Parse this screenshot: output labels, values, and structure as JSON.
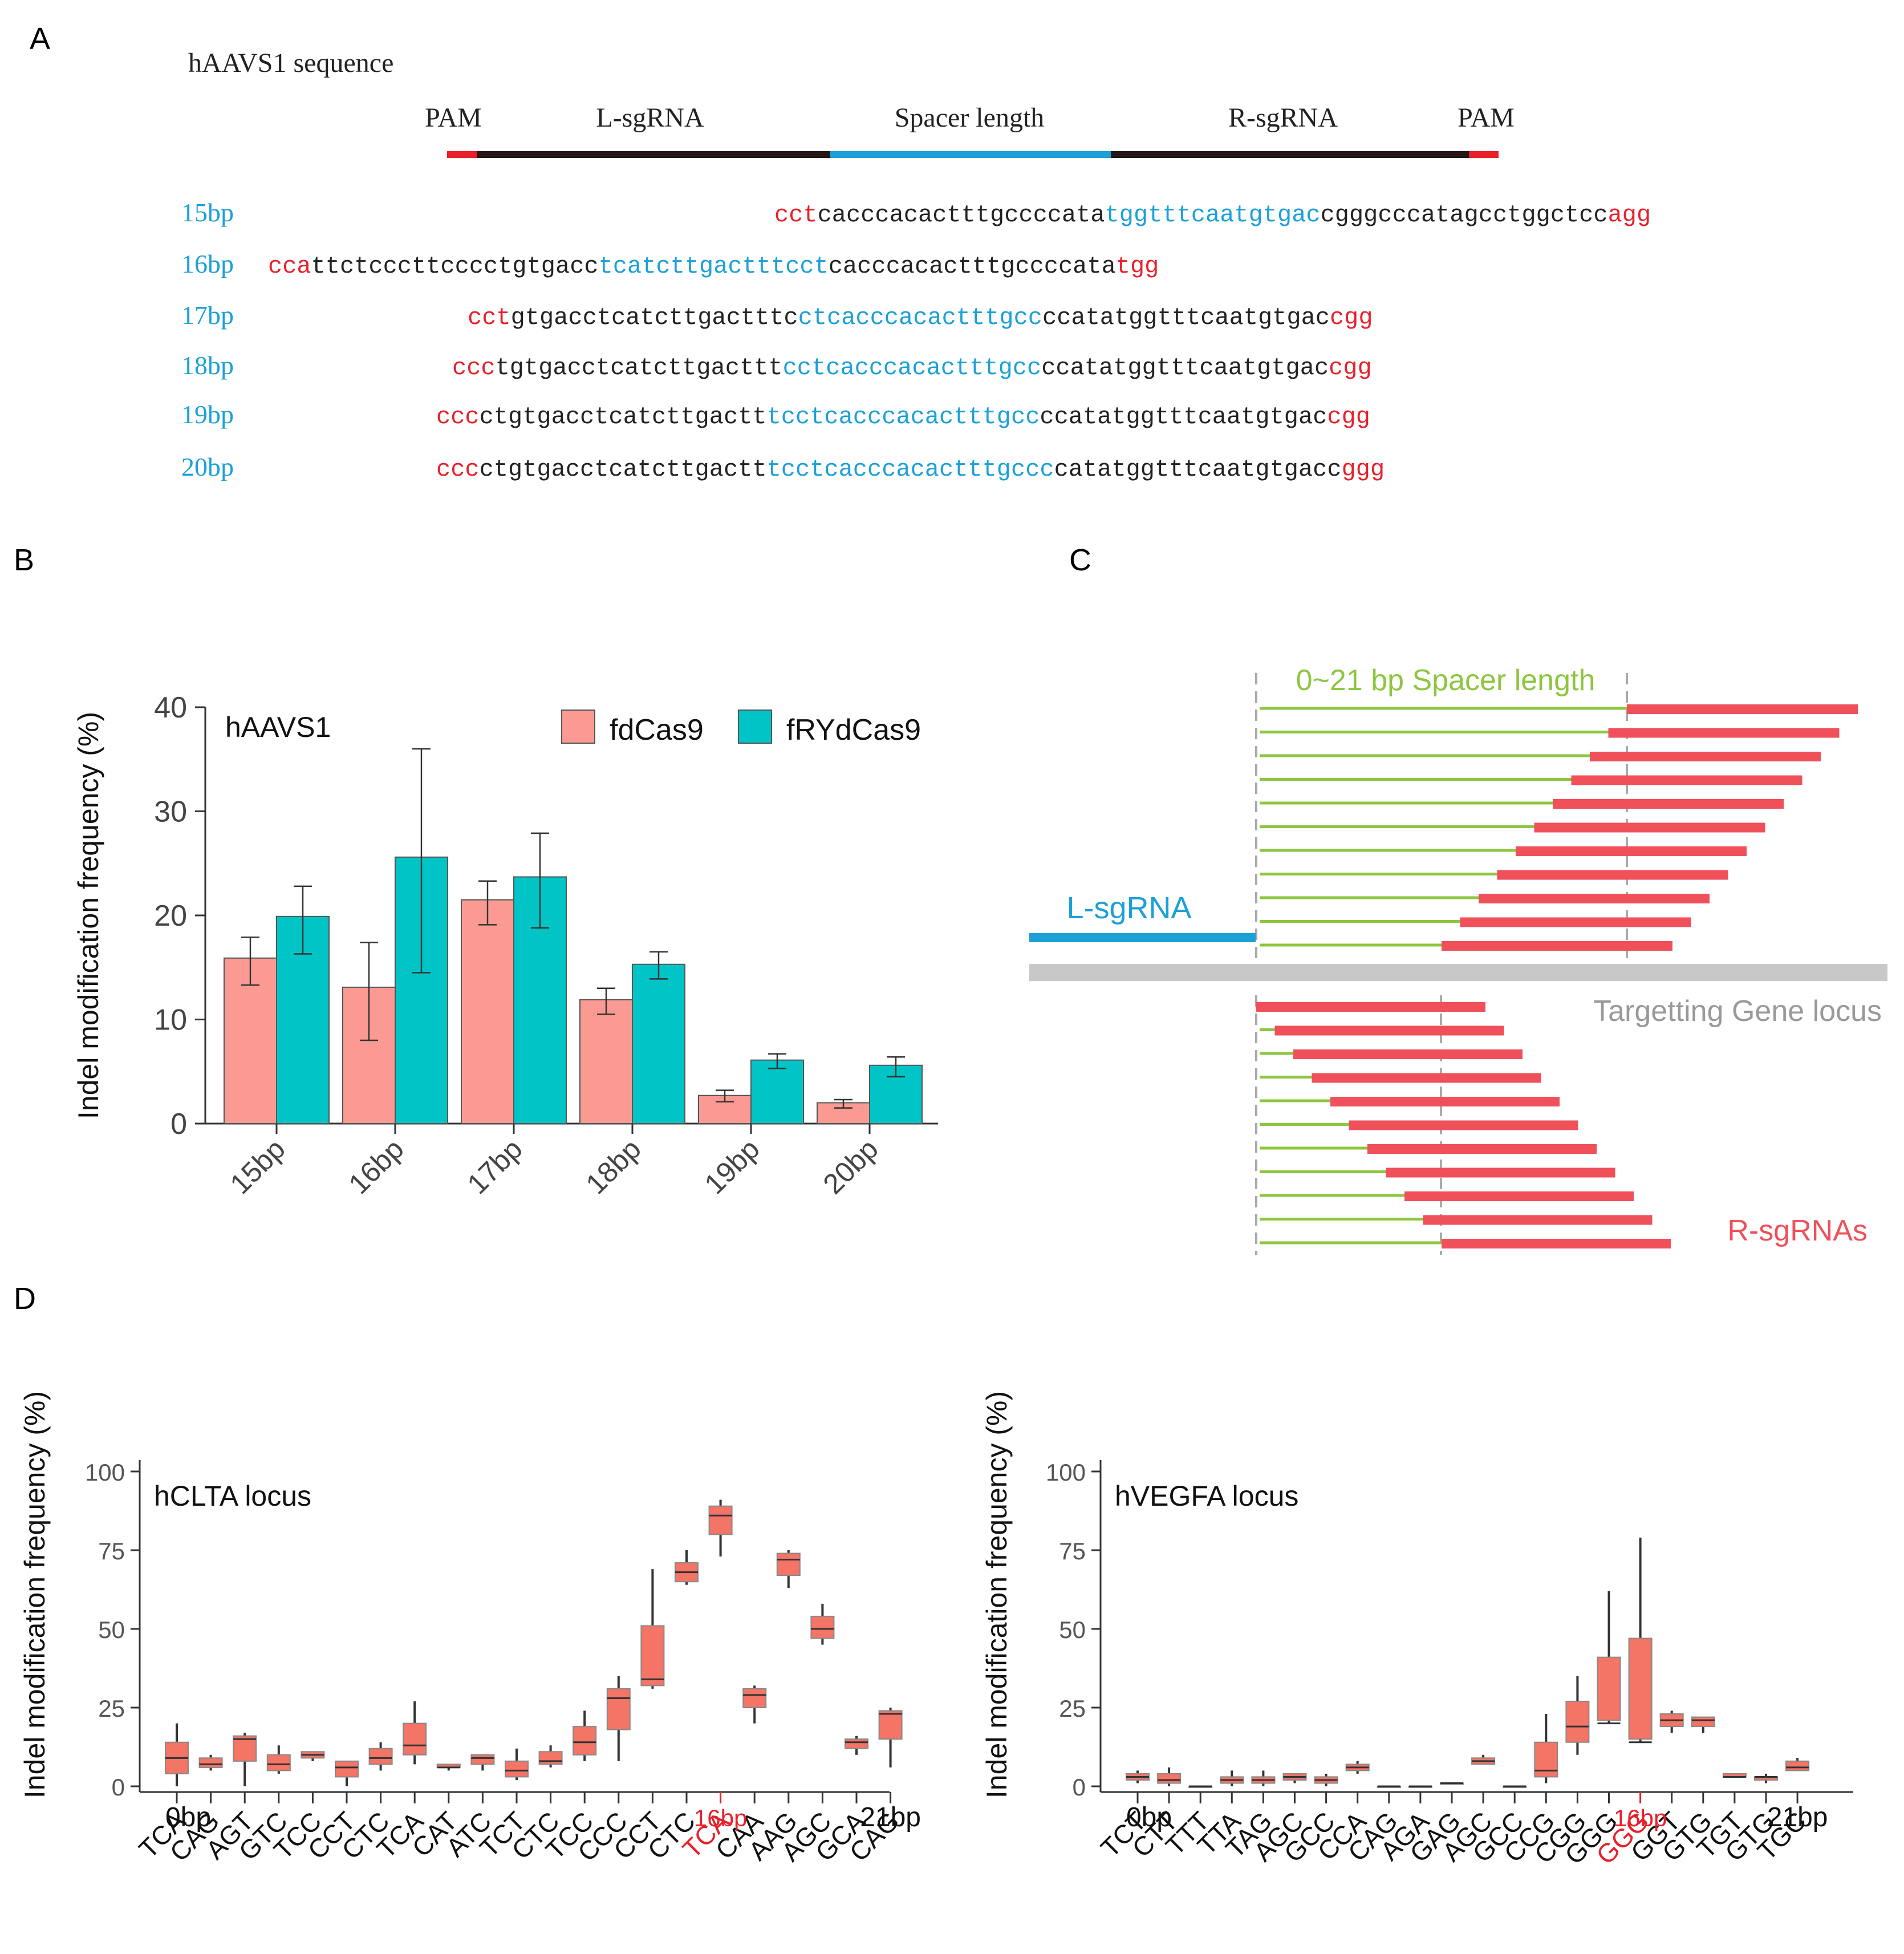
{
  "panels": {
    "A": "A",
    "B": "B",
    "C": "C",
    "D": "D"
  },
  "colors": {
    "pam": "#e8202a",
    "spacer": "#1ca0d8",
    "salmon": "#fa9a93",
    "teal": "#00c4c6",
    "green": "#8dc63f",
    "red_bar": "#f0505a",
    "box": "#f47466",
    "grey": "#c8c8c8"
  },
  "panelA": {
    "title": "hAAVS1 sequence",
    "labels": {
      "pam_left": "PAM",
      "l_sgrna": "L-sgRNA",
      "spacer": "Spacer length",
      "r_sgrna": "R-sgRNA",
      "pam_right": "PAM"
    },
    "rows": [
      {
        "label": "15bp",
        "seg1": "cct",
        "seg2": "cacccacactttgccccata",
        "seg3": "tggtttcaatgtgac",
        "seg4": "cgggcccatagcctggctcc",
        "seg5": "agg"
      },
      {
        "label": "16bp",
        "seg1": "cca",
        "seg2": "ttctcccttcccctgtgacc",
        "seg3": "tcatcttgactttcct",
        "seg4": "cacccacactttgccccata",
        "seg5": "tgg"
      },
      {
        "label": "17bp",
        "seg1": "cct",
        "seg2": "gtgacctcatcttgactttc",
        "seg3": "ctcacccacactttgcc",
        "seg4": "ccatatggtttcaatgtgac",
        "seg5": "cgg"
      },
      {
        "label": "18bp",
        "seg1": "ccc",
        "seg2": "tgtgacctcatcttgacttt",
        "seg3": "cctcacccacactttgcc",
        "seg4": "ccatatggtttcaatgtgac",
        "seg5": "cgg"
      },
      {
        "label": "19bp",
        "seg1": "ccc",
        "seg2": "ctgtgacctcatcttgactt",
        "seg3": "tcctcacccacactttgcc",
        "seg4": "ccatatggtttcaatgtgac",
        "seg5": "cgg"
      },
      {
        "label": "20bp",
        "seg1": "ccc",
        "seg2": "ctgtgacctcatcttgactt",
        "seg3": "tcctcacccacactttgccc",
        "seg4": "catatggtttcaatgtgacc",
        "seg5": "ggg"
      }
    ]
  },
  "panelC": {
    "spacer_label": "0~21 bp Spacer length",
    "l_label": "L-sgRNA",
    "locus_label": "Targetting Gene locus",
    "r_label": "R-sgRNAs"
  },
  "chart_data": [
    {
      "type": "bar",
      "title": "hAAVS1",
      "xlabel": "",
      "ylabel": "Indel modification frequency (%)",
      "categories": [
        "15bp",
        "16bp",
        "17bp",
        "18bp",
        "19bp",
        "20bp"
      ],
      "ylim": [
        0,
        40
      ],
      "yticks": [
        "0",
        "10",
        "20",
        "30",
        "40"
      ],
      "legend": "top-right",
      "series": [
        {
          "name": "fdCas9",
          "color": "#fa9a93",
          "values": [
            15.9,
            13.1,
            21.5,
            11.9,
            2.7,
            2.0
          ],
          "err_low": [
            13.3,
            8.0,
            19.1,
            10.5,
            2.1,
            1.5
          ],
          "err_high": [
            17.9,
            17.4,
            23.3,
            13.0,
            3.2,
            2.3
          ]
        },
        {
          "name": "fRYdCas9",
          "color": "#00c4c6",
          "values": [
            19.9,
            25.6,
            23.7,
            15.3,
            6.1,
            5.6
          ],
          "err_low": [
            16.3,
            14.5,
            18.8,
            13.9,
            5.3,
            4.5
          ],
          "err_high": [
            22.8,
            36.0,
            27.9,
            16.5,
            6.7,
            6.4
          ]
        }
      ]
    },
    {
      "type": "box",
      "title": "hCLTA locus",
      "ylabel": "Indel modification frequency (%)",
      "ylim": [
        0,
        100
      ],
      "yticks": [
        "0",
        "25",
        "50",
        "75",
        "100"
      ],
      "axis_labels": {
        "start": "0bp",
        "highlight": "16bp",
        "end": "21bp"
      },
      "highlight_index": 16,
      "categories": [
        "TCA",
        "CAG",
        "AGT",
        "GTC",
        "TCC",
        "CCT",
        "CTC",
        "TCA",
        "CAT",
        "ATC",
        "TCT",
        "CTC",
        "TCC",
        "CCC",
        "CCT",
        "CTC",
        "TCA",
        "CAA",
        "AAG",
        "AGC",
        "GCA",
        "CAG"
      ],
      "boxes": [
        [
          0,
          4,
          9,
          14,
          20
        ],
        [
          5,
          6,
          7,
          9,
          10
        ],
        [
          0,
          8,
          15,
          16,
          17
        ],
        [
          4,
          5,
          7,
          10,
          13
        ],
        [
          8,
          9,
          10,
          11,
          11
        ],
        [
          0,
          3,
          6,
          8,
          8
        ],
        [
          5,
          7,
          9,
          12,
          14
        ],
        [
          7,
          10,
          13,
          20,
          27
        ],
        [
          5,
          6,
          6,
          7,
          7
        ],
        [
          5,
          7,
          9,
          10,
          10
        ],
        [
          2,
          3,
          5,
          8,
          12
        ],
        [
          6,
          7,
          8,
          11,
          13
        ],
        [
          8,
          10,
          14,
          19,
          24
        ],
        [
          8,
          18,
          28,
          31,
          35
        ],
        [
          31,
          32,
          34,
          51,
          69
        ],
        [
          64,
          65,
          68,
          71,
          75
        ],
        [
          73,
          80,
          86,
          89,
          91
        ],
        [
          20,
          25,
          29,
          31,
          32
        ],
        [
          63,
          67,
          72,
          74,
          75
        ],
        [
          45,
          47,
          50,
          54,
          58
        ],
        [
          10,
          12,
          14,
          15,
          16
        ],
        [
          6,
          15,
          23,
          24,
          25
        ]
      ]
    },
    {
      "type": "box",
      "title": "hVEGFA locus",
      "ylabel": "Indel modification frequency (%)",
      "ylim": [
        0,
        100
      ],
      "yticks": [
        "0",
        "25",
        "50",
        "75",
        "100"
      ],
      "axis_labels": {
        "start": "0bp",
        "highlight": "16bp",
        "end": "21bp"
      },
      "highlight_index": 16,
      "categories": [
        "TCT",
        "CTT",
        "TTT",
        "TTA",
        "TAG",
        "AGC",
        "GCC",
        "CCA",
        "CAG",
        "AGA",
        "GAG",
        "AGC",
        "GCC",
        "CCG",
        "CGG",
        "GGG",
        "GGG",
        "GGT",
        "GTG",
        "TGT",
        "GTG",
        "TGC"
      ],
      "boxes": [
        [
          1,
          2,
          3,
          4,
          5
        ],
        [
          0,
          1,
          2,
          4,
          6
        ],
        [
          0,
          0,
          0,
          0,
          0
        ],
        [
          0,
          1,
          2,
          3,
          5
        ],
        [
          0,
          1,
          2,
          3,
          5
        ],
        [
          1,
          2,
          3,
          4,
          4
        ],
        [
          0,
          1,
          2,
          3,
          4
        ],
        [
          4,
          5,
          6,
          7,
          8
        ],
        [
          0,
          0,
          0,
          0,
          0
        ],
        [
          0,
          0,
          0,
          0,
          0
        ],
        [
          0.5,
          1,
          1,
          1,
          1
        ],
        [
          7,
          7,
          8,
          9,
          10
        ],
        [
          0,
          0,
          0,
          0,
          0
        ],
        [
          1,
          3,
          5,
          14,
          23
        ],
        [
          10,
          14,
          19,
          27,
          35
        ],
        [
          20,
          21,
          20,
          41,
          62
        ],
        [
          14,
          15,
          14,
          47,
          79
        ],
        [
          17,
          19,
          21,
          23,
          24
        ],
        [
          17,
          19,
          21,
          22,
          22
        ],
        [
          3,
          3,
          3,
          4,
          4
        ],
        [
          1,
          2,
          3,
          3,
          4
        ],
        [
          5,
          5,
          6,
          8,
          9
        ]
      ]
    }
  ]
}
